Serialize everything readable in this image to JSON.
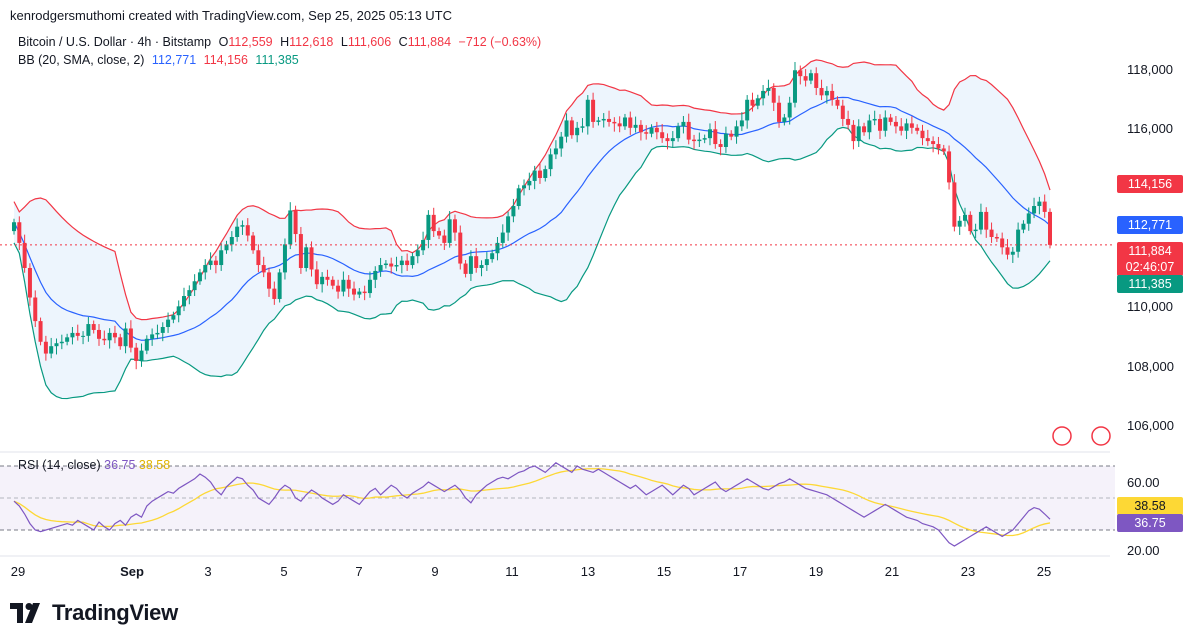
{
  "header": {
    "credit": "kenrodgersmuthomi created with TradingView.com, Sep 25, 2025 05:13 UTC"
  },
  "legend": {
    "symbol": "Bitcoin / U.S. Dollar · 4h · Bitstamp",
    "open_label": "O",
    "open": "112,559",
    "high_label": "H",
    "high": "112,618",
    "low_label": "L",
    "low": "111,606",
    "close_label": "C",
    "close": "111,884",
    "change": "−712 (−0.63%)",
    "bb_label": "BB (20, SMA, close, 2)",
    "bb_basis": "112,771",
    "bb_upper": "114,156",
    "bb_lower": "111,385",
    "rsi_label": "RSI (14, close)",
    "rsi_value": "36.75",
    "rsi_ma": "38.58"
  },
  "price_axis": {
    "ticks": [
      "118,000",
      "116,000",
      "110,000",
      "108,000",
      "106,000"
    ],
    "tags": {
      "upper": "114,156",
      "basis": "112,771",
      "last_price": "111,884",
      "countdown": "02:46:07",
      "lower": "111,385"
    }
  },
  "rsi_axis": {
    "ticks": [
      "60.00",
      "20.00"
    ],
    "tags": {
      "ma": "38.58",
      "rsi": "36.75"
    }
  },
  "time_axis": {
    "ticks": [
      "29",
      "Sep",
      "3",
      "5",
      "7",
      "9",
      "11",
      "13",
      "15",
      "17",
      "19",
      "21",
      "23",
      "25"
    ]
  },
  "brand": {
    "name": "TradingView"
  },
  "colors": {
    "up": "#089981",
    "down": "#f23645",
    "basis": "#2962ff",
    "upper": "#f23645",
    "lower": "#089981",
    "band_fill": "#e8f2fc",
    "rsi": "#7e57c2",
    "rsi_ma": "#fdd835"
  },
  "chart_data": [
    {
      "type": "candlestick",
      "title": "Bitcoin / U.S. Dollar · 4h · Bitstamp",
      "timeframe": "4h",
      "x_ticks": [
        "29",
        "Sep",
        "3",
        "5",
        "7",
        "9",
        "11",
        "13",
        "15",
        "17",
        "19",
        "21",
        "23",
        "25"
      ],
      "ylim": [
        105000,
        119300
      ],
      "y_ticks": [
        106000,
        108000,
        110000,
        112000,
        114000,
        116000,
        118000
      ],
      "close_series": [
        112650,
        111950,
        111100,
        110100,
        109300,
        108600,
        108200,
        108450,
        108550,
        108600,
        108750,
        108900,
        108800,
        108800,
        109200,
        109000,
        108700,
        108650,
        108900,
        108750,
        108450,
        109050,
        108400,
        107950,
        108300,
        108700,
        108850,
        108900,
        109100,
        109350,
        109500,
        109800,
        110150,
        110350,
        110650,
        110950,
        111200,
        111350,
        111200,
        111700,
        111900,
        112150,
        112500,
        112550,
        112200,
        111700,
        111200,
        110950,
        110400,
        110050,
        110950,
        111900,
        113050,
        112250,
        111100,
        111800,
        111050,
        110550,
        110800,
        110700,
        110500,
        110300,
        110700,
        110400,
        110200,
        110300,
        110250,
        110700,
        111000,
        111200,
        111250,
        111150,
        111200,
        111350,
        111200,
        111500,
        111700,
        112050,
        112900,
        112350,
        112200,
        111950,
        112750,
        112300,
        111250,
        110900,
        111500,
        111100,
        111200,
        111400,
        111600,
        111950,
        112300,
        112850,
        113200,
        113800,
        113900,
        114050,
        114400,
        114150,
        114450,
        114950,
        115150,
        115550,
        116100,
        115600,
        115850,
        115900,
        116800,
        116050,
        116100,
        116150,
        116050,
        116000,
        115900,
        116200,
        115850,
        115950,
        115700,
        115650,
        115850,
        115700,
        115500,
        115400,
        115500,
        115900,
        116050,
        115450,
        115400,
        115450,
        115500,
        115800,
        115300,
        115200,
        115650,
        115550,
        115900,
        116100,
        116800,
        116600,
        116850,
        117100,
        117200,
        116700,
        116050,
        116200,
        116700,
        117800,
        117600,
        117450,
        117700,
        117200,
        116950,
        117100,
        116800,
        116600,
        116150,
        115950,
        115400,
        115900,
        115700,
        116100,
        116150,
        115750,
        116200,
        116050,
        115900,
        115750,
        116000,
        115850,
        115750,
        115500,
        115400,
        115300,
        115150,
        115050,
        114000,
        112500,
        112700,
        112900,
        112350,
        112400,
        113000,
        112400,
        112150,
        112100,
        111800,
        111550,
        111650,
        112400,
        112600,
        112950,
        113200,
        113350,
        113000,
        111884
      ],
      "bb_upper_end": 114156,
      "bb_basis_end": 112771,
      "bb_lower_end": 111385,
      "last": {
        "open": 112559,
        "high": 112618,
        "low": 111606,
        "close": 111884
      }
    },
    {
      "type": "line",
      "title": "RSI (14, close)",
      "ylim": [
        15,
        75
      ],
      "y_ticks": [
        20,
        60
      ],
      "bands": [
        30,
        70
      ],
      "series": [
        {
          "name": "RSI",
          "values": [
            48,
            45,
            40,
            34,
            30,
            29,
            30,
            31,
            32,
            33,
            34,
            33,
            36,
            34,
            32,
            30,
            35,
            32,
            30,
            34,
            36,
            33,
            38,
            40,
            38,
            45,
            48,
            50,
            52,
            54,
            53,
            56,
            58,
            60,
            62,
            65,
            63,
            60,
            55,
            52,
            57,
            60,
            63,
            62,
            58,
            55,
            50,
            48,
            46,
            50,
            55,
            58,
            56,
            50,
            48,
            52,
            55,
            53,
            50,
            48,
            46,
            48,
            52,
            50,
            48,
            46,
            50,
            54,
            56,
            52,
            55,
            58,
            56,
            52,
            50,
            53,
            55,
            57,
            60,
            58,
            56,
            54,
            56,
            58,
            55,
            50,
            47,
            52,
            55,
            58,
            60,
            62,
            63,
            62,
            64,
            66,
            67,
            69,
            70,
            68,
            66,
            69,
            72,
            70,
            68,
            66,
            70,
            68,
            67,
            66,
            68,
            66,
            64,
            62,
            60,
            58,
            56,
            58,
            55,
            52,
            54,
            56,
            58,
            55,
            52,
            55,
            58,
            56,
            52,
            54,
            56,
            58,
            60,
            56,
            54,
            56,
            58,
            60,
            62,
            60,
            58,
            56,
            55,
            57,
            59,
            60,
            62,
            60,
            58,
            56,
            55,
            54,
            53,
            52,
            50,
            48,
            46,
            44,
            42,
            40,
            38,
            40,
            42,
            44,
            46,
            44,
            42,
            40,
            38,
            37,
            36,
            34,
            33,
            32,
            30,
            26,
            22,
            20,
            22,
            24,
            26,
            28,
            30,
            32,
            30,
            28,
            26,
            28,
            30,
            34,
            38,
            42,
            44,
            43,
            40,
            36.75
          ]
        },
        {
          "name": "RSI-based MA",
          "values_end": 38.58
        }
      ]
    }
  ]
}
